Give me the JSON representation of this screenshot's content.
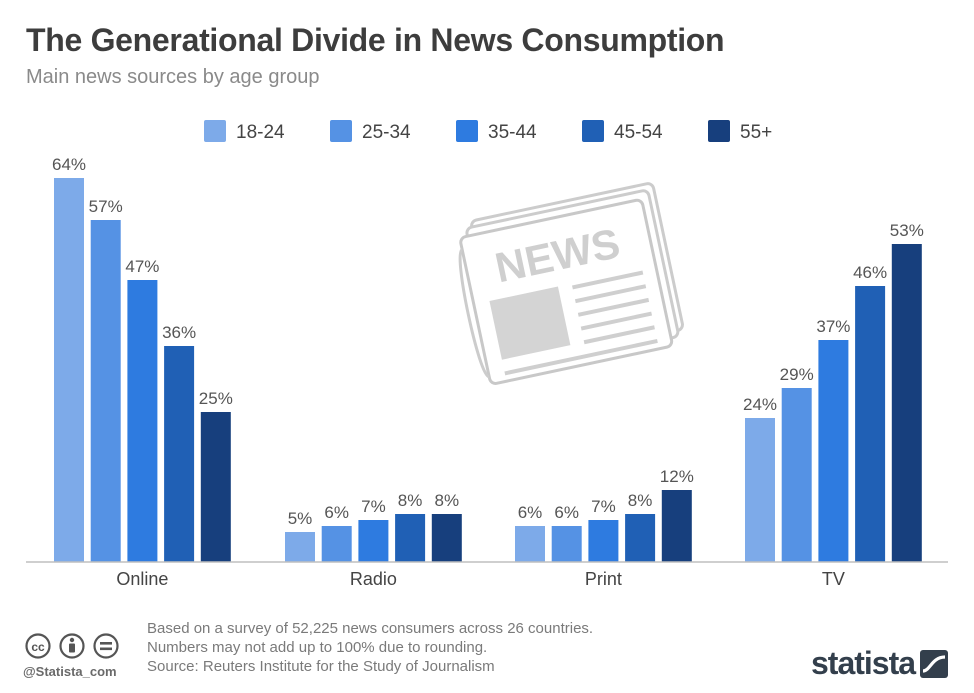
{
  "header": {
    "title": "The Generational Divide in News Consumption",
    "subtitle": "Main news sources by age group"
  },
  "chart_data": {
    "type": "bar",
    "categories": [
      "Online",
      "Radio",
      "Print",
      "TV"
    ],
    "series": [
      {
        "name": "18-24",
        "color": "#7daae9",
        "values": [
          64,
          5,
          6,
          24
        ]
      },
      {
        "name": "25-34",
        "color": "#5592e4",
        "values": [
          57,
          6,
          6,
          29
        ]
      },
      {
        "name": "35-44",
        "color": "#2e7be0",
        "values": [
          47,
          7,
          7,
          37
        ]
      },
      {
        "name": "45-54",
        "color": "#2060b5",
        "values": [
          36,
          8,
          8,
          46
        ]
      },
      {
        "name": "55+",
        "color": "#173f7d",
        "values": [
          25,
          8,
          12,
          53
        ]
      }
    ],
    "value_suffix": "%",
    "ylim": [
      0,
      64
    ],
    "grid": false,
    "legend_position": "top-center"
  },
  "footer": {
    "notes": [
      "Based on a survey of 52,225 news consumers across 26 countries.",
      "Numbers may not add up to 100% due to rounding.",
      "Source: Reuters Institute for the Study of Journalism"
    ],
    "handle": "@Statista_com",
    "license_icons": [
      "cc-icon",
      "attribution-icon",
      "no-derivatives-icon"
    ],
    "brand": "statista"
  },
  "illustration": {
    "icon": "newspaper-icon",
    "label": "NEWS"
  }
}
